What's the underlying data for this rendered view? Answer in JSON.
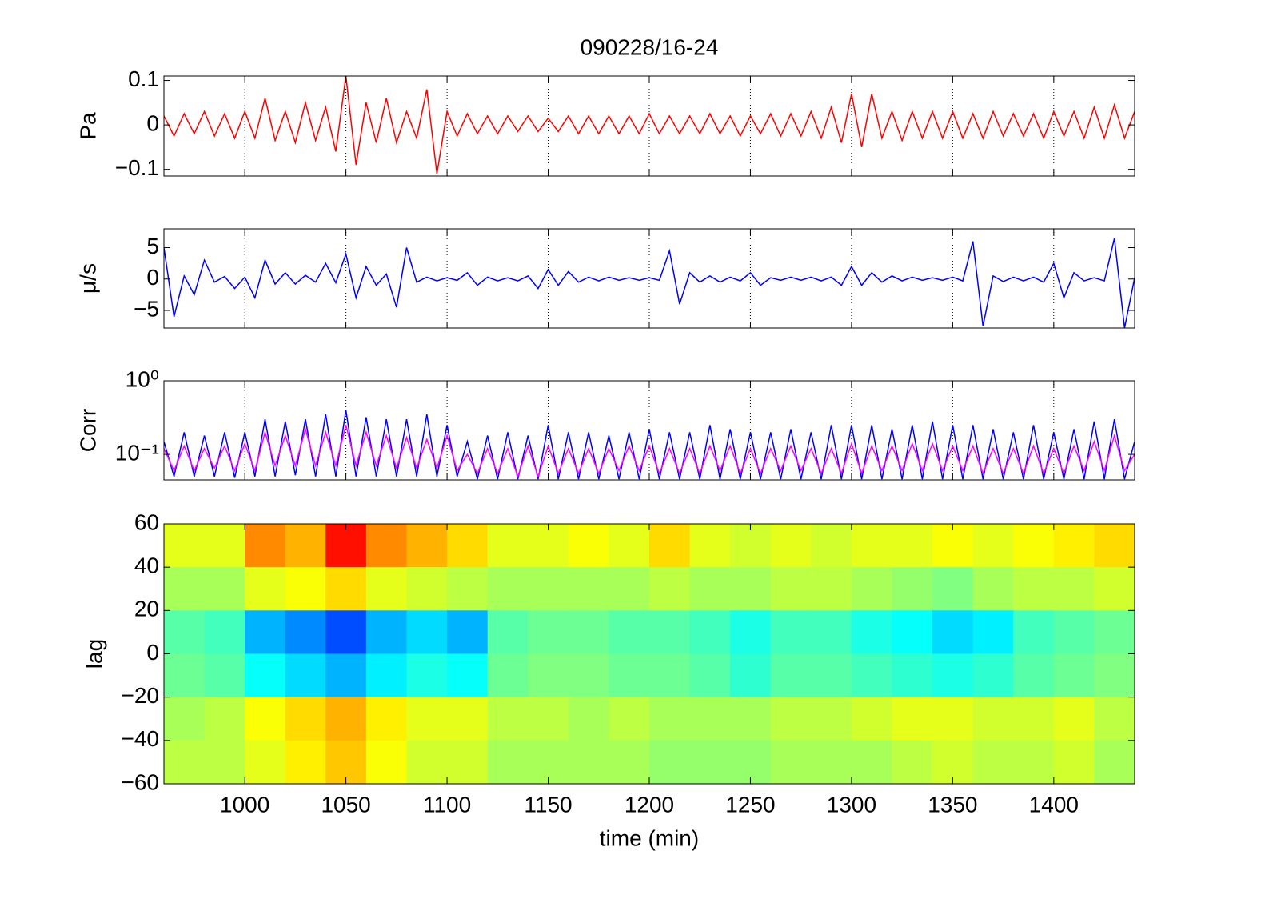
{
  "chart_data": [
    {
      "type": "line",
      "title": "090228/16-24",
      "ylabel": "Pa",
      "xlim": [
        960,
        1440
      ],
      "xticks": [
        1000,
        1050,
        1100,
        1150,
        1200,
        1250,
        1300,
        1350,
        1400
      ],
      "grid_x": true,
      "ylim": [
        -0.115,
        0.11
      ],
      "yticks": [
        0.1,
        0,
        {
          "value": -0.1,
          "label": "−0.1"
        }
      ],
      "x": [
        960,
        965,
        970,
        975,
        980,
        985,
        990,
        995,
        1000,
        1005,
        1010,
        1015,
        1020,
        1025,
        1030,
        1035,
        1040,
        1045,
        1050,
        1055,
        1060,
        1065,
        1070,
        1075,
        1080,
        1085,
        1090,
        1095,
        1100,
        1105,
        1110,
        1115,
        1120,
        1125,
        1130,
        1135,
        1140,
        1145,
        1150,
        1155,
        1160,
        1165,
        1170,
        1175,
        1180,
        1185,
        1190,
        1195,
        1200,
        1205,
        1210,
        1215,
        1220,
        1225,
        1230,
        1235,
        1240,
        1245,
        1250,
        1255,
        1260,
        1265,
        1270,
        1275,
        1280,
        1285,
        1290,
        1295,
        1300,
        1305,
        1310,
        1315,
        1320,
        1325,
        1330,
        1335,
        1340,
        1345,
        1350,
        1355,
        1360,
        1365,
        1370,
        1375,
        1380,
        1385,
        1390,
        1395,
        1400,
        1405,
        1410,
        1415,
        1420,
        1425,
        1430,
        1435,
        1440
      ],
      "series": [
        {
          "color": "#ff0000",
          "values": [
            0.02,
            -0.025,
            0.025,
            -0.02,
            0.03,
            -0.025,
            0.025,
            -0.03,
            0.03,
            -0.03,
            0.06,
            -0.035,
            0.03,
            -0.04,
            0.05,
            -0.035,
            0.04,
            -0.06,
            0.11,
            -0.09,
            0.05,
            -0.04,
            0.06,
            -0.04,
            0.03,
            -0.03,
            0.08,
            -0.11,
            0.03,
            -0.025,
            0.025,
            -0.02,
            0.02,
            -0.02,
            0.02,
            -0.015,
            0.02,
            -0.015,
            0.015,
            -0.015,
            0.02,
            -0.02,
            0.02,
            -0.02,
            0.02,
            -0.02,
            0.02,
            -0.02,
            0.025,
            -0.02,
            0.02,
            -0.02,
            0.02,
            -0.02,
            0.025,
            -0.02,
            0.02,
            -0.025,
            0.02,
            -0.02,
            0.025,
            -0.025,
            0.025,
            -0.025,
            0.03,
            -0.03,
            0.04,
            -0.04,
            0.07,
            -0.05,
            0.07,
            -0.03,
            0.03,
            -0.035,
            0.03,
            -0.03,
            0.03,
            -0.03,
            0.03,
            -0.03,
            0.025,
            -0.03,
            0.03,
            -0.025,
            0.025,
            -0.025,
            0.025,
            -0.03,
            0.03,
            -0.025,
            0.03,
            -0.03,
            0.04,
            -0.03,
            0.045,
            -0.03,
            0.03
          ]
        }
      ]
    },
    {
      "type": "line",
      "ylabel": "μ/s",
      "xlim": [
        960,
        1440
      ],
      "xticks": [
        1000,
        1050,
        1100,
        1150,
        1200,
        1250,
        1300,
        1350,
        1400
      ],
      "grid_x": true,
      "ylim": [
        -7.8,
        8
      ],
      "yticks": [
        5,
        0,
        {
          "value": -5,
          "label": "−5"
        }
      ],
      "x": [
        960,
        965,
        970,
        975,
        980,
        985,
        990,
        995,
        1000,
        1005,
        1010,
        1015,
        1020,
        1025,
        1030,
        1035,
        1040,
        1045,
        1050,
        1055,
        1060,
        1065,
        1070,
        1075,
        1080,
        1085,
        1090,
        1095,
        1100,
        1105,
        1110,
        1115,
        1120,
        1125,
        1130,
        1135,
        1140,
        1145,
        1150,
        1155,
        1160,
        1165,
        1170,
        1175,
        1180,
        1185,
        1190,
        1195,
        1200,
        1205,
        1210,
        1215,
        1220,
        1225,
        1230,
        1235,
        1240,
        1245,
        1250,
        1255,
        1260,
        1265,
        1270,
        1275,
        1280,
        1285,
        1290,
        1295,
        1300,
        1305,
        1310,
        1315,
        1320,
        1325,
        1330,
        1335,
        1340,
        1345,
        1350,
        1355,
        1360,
        1365,
        1370,
        1375,
        1380,
        1385,
        1390,
        1395,
        1400,
        1405,
        1410,
        1415,
        1420,
        1425,
        1430,
        1435,
        1440
      ],
      "series": [
        {
          "color": "#0000ff",
          "values": [
            5,
            -6,
            0.5,
            -2.5,
            3,
            -0.5,
            0.4,
            -1.5,
            0.3,
            -3,
            3,
            -0.8,
            1,
            -0.8,
            0.6,
            -0.5,
            2.5,
            -0.6,
            4,
            -3,
            2,
            -1,
            0.8,
            -4.5,
            5,
            -0.5,
            0.3,
            -0.3,
            0.2,
            -0.2,
            1,
            -1,
            0.3,
            -0.3,
            0.2,
            -0.3,
            0.5,
            -1.5,
            1.5,
            -1,
            1.2,
            -0.5,
            0.3,
            -0.3,
            0.3,
            -0.2,
            0.2,
            -0.2,
            0.2,
            -0.2,
            4.5,
            -4,
            1,
            -0.5,
            0.5,
            -0.5,
            0.3,
            -0.3,
            1,
            -1,
            0.2,
            -0.2,
            0.3,
            -0.2,
            0.3,
            -0.3,
            0.3,
            -1,
            2,
            -1,
            1,
            -0.5,
            0.5,
            -0.3,
            0.3,
            -0.2,
            0.2,
            -0.2,
            0.3,
            -0.3,
            6,
            -7.5,
            0.5,
            -0.4,
            0.3,
            -0.3,
            0.3,
            -0.5,
            2.5,
            -3,
            1,
            -0.3,
            0.2,
            -0.3,
            6.5,
            -7.8,
            0.2
          ]
        }
      ]
    },
    {
      "type": "line",
      "ylabel": "Corr",
      "log": true,
      "xlim": [
        960,
        1440
      ],
      "xticks": [
        1000,
        1050,
        1100,
        1150,
        1200,
        1250,
        1300,
        1350,
        1400
      ],
      "grid_x": true,
      "ylim": [
        0.045,
        1
      ],
      "yticks": [
        {
          "value": 1,
          "label": "10⁰"
        },
        {
          "value": 0.1,
          "label": "10⁻¹"
        }
      ],
      "x": [
        960,
        965,
        970,
        975,
        980,
        985,
        990,
        995,
        1000,
        1005,
        1010,
        1015,
        1020,
        1025,
        1030,
        1035,
        1040,
        1045,
        1050,
        1055,
        1060,
        1065,
        1070,
        1075,
        1080,
        1085,
        1090,
        1095,
        1100,
        1105,
        1110,
        1115,
        1120,
        1125,
        1130,
        1135,
        1140,
        1145,
        1150,
        1155,
        1160,
        1165,
        1170,
        1175,
        1180,
        1185,
        1190,
        1195,
        1200,
        1205,
        1210,
        1215,
        1220,
        1225,
        1230,
        1235,
        1240,
        1245,
        1250,
        1255,
        1260,
        1265,
        1270,
        1275,
        1280,
        1285,
        1290,
        1295,
        1300,
        1305,
        1310,
        1315,
        1320,
        1325,
        1330,
        1335,
        1340,
        1345,
        1350,
        1355,
        1360,
        1365,
        1370,
        1375,
        1380,
        1385,
        1390,
        1395,
        1400,
        1405,
        1410,
        1415,
        1420,
        1425,
        1430,
        1435,
        1440
      ],
      "series": [
        {
          "color": "#0000ff",
          "values": [
            0.15,
            0.05,
            0.2,
            0.05,
            0.18,
            0.05,
            0.2,
            0.048,
            0.2,
            0.05,
            0.3,
            0.05,
            0.28,
            0.052,
            0.3,
            0.05,
            0.35,
            0.05,
            0.4,
            0.05,
            0.32,
            0.05,
            0.3,
            0.05,
            0.3,
            0.05,
            0.35,
            0.05,
            0.25,
            0.05,
            0.15,
            0.046,
            0.18,
            0.046,
            0.2,
            0.046,
            0.18,
            0.046,
            0.25,
            0.046,
            0.2,
            0.046,
            0.2,
            0.046,
            0.18,
            0.046,
            0.2,
            0.046,
            0.22,
            0.046,
            0.2,
            0.046,
            0.2,
            0.046,
            0.25,
            0.046,
            0.22,
            0.046,
            0.2,
            0.046,
            0.2,
            0.046,
            0.22,
            0.046,
            0.2,
            0.046,
            0.25,
            0.046,
            0.25,
            0.046,
            0.25,
            0.046,
            0.22,
            0.046,
            0.25,
            0.046,
            0.28,
            0.046,
            0.25,
            0.046,
            0.25,
            0.046,
            0.22,
            0.046,
            0.2,
            0.046,
            0.25,
            0.046,
            0.2,
            0.046,
            0.22,
            0.046,
            0.28,
            0.046,
            0.3,
            0.046,
            0.15
          ]
        },
        {
          "color": "#ff00ff",
          "values": [
            0.12,
            0.06,
            0.13,
            0.06,
            0.12,
            0.065,
            0.13,
            0.06,
            0.14,
            0.06,
            0.2,
            0.07,
            0.18,
            0.07,
            0.22,
            0.07,
            0.2,
            0.07,
            0.25,
            0.07,
            0.2,
            0.07,
            0.18,
            0.065,
            0.17,
            0.065,
            0.16,
            0.065,
            0.18,
            0.06,
            0.1,
            0.055,
            0.12,
            0.055,
            0.12,
            0.05,
            0.13,
            0.05,
            0.13,
            0.055,
            0.12,
            0.055,
            0.12,
            0.055,
            0.12,
            0.06,
            0.13,
            0.06,
            0.13,
            0.055,
            0.12,
            0.055,
            0.12,
            0.055,
            0.13,
            0.06,
            0.13,
            0.055,
            0.12,
            0.055,
            0.12,
            0.06,
            0.13,
            0.06,
            0.12,
            0.055,
            0.12,
            0.055,
            0.14,
            0.055,
            0.13,
            0.06,
            0.13,
            0.06,
            0.14,
            0.06,
            0.14,
            0.06,
            0.13,
            0.06,
            0.13,
            0.055,
            0.12,
            0.055,
            0.12,
            0.055,
            0.13,
            0.055,
            0.12,
            0.055,
            0.13,
            0.06,
            0.15,
            0.06,
            0.18,
            0.06,
            0.1
          ]
        }
      ]
    },
    {
      "type": "heatmap",
      "ylabel": "lag",
      "xlabel": "time (min)",
      "xlim": [
        960,
        1440
      ],
      "xticks": [
        1000,
        1050,
        1100,
        1150,
        1200,
        1250,
        1300,
        1350,
        1400
      ],
      "ylim": [
        -60,
        60
      ],
      "yticks": [
        60,
        40,
        20,
        0,
        {
          "value": -20,
          "label": "−20"
        },
        {
          "value": -40,
          "label": "−40"
        },
        {
          "value": -60,
          "label": "−60"
        }
      ],
      "colormap": "jet",
      "clim": [
        -0.25,
        0.25
      ],
      "x_edges": [
        960,
        980,
        1000,
        1020,
        1040,
        1060,
        1080,
        1100,
        1120,
        1140,
        1160,
        1180,
        1200,
        1220,
        1240,
        1260,
        1280,
        1300,
        1320,
        1340,
        1360,
        1380,
        1400,
        1420,
        1440
      ],
      "y_edges": [
        60,
        40,
        20,
        0,
        -20,
        -40,
        -60
      ],
      "z": [
        [
          0.05,
          0.05,
          0.12,
          0.1,
          0.18,
          0.12,
          0.1,
          0.08,
          0.05,
          0.05,
          0.06,
          0.05,
          0.08,
          0.05,
          0.04,
          0.05,
          0.04,
          0.05,
          0.05,
          0.06,
          0.05,
          0.06,
          0.07,
          0.08
        ],
        [
          0.02,
          0.02,
          0.05,
          0.06,
          0.08,
          0.05,
          0.04,
          0.03,
          0.02,
          0.02,
          0.02,
          0.02,
          0.03,
          0.02,
          0.02,
          0.03,
          0.03,
          0.02,
          0.01,
          0,
          0.02,
          0.03,
          0.03,
          0.04
        ],
        [
          -0.02,
          -0.03,
          -0.1,
          -0.12,
          -0.15,
          -0.1,
          -0.08,
          -0.1,
          -0.02,
          -0.01,
          -0.01,
          -0.02,
          -0.02,
          -0.03,
          -0.05,
          -0.03,
          -0.03,
          -0.05,
          -0.06,
          -0.08,
          -0.07,
          -0.03,
          -0.02,
          -0.01
        ],
        [
          -0.01,
          -0.02,
          -0.06,
          -0.08,
          -0.1,
          -0.07,
          -0.05,
          -0.06,
          -0.01,
          0,
          0,
          -0.01,
          -0.01,
          -0.02,
          -0.04,
          -0.02,
          -0.02,
          -0.03,
          -0.04,
          -0.05,
          -0.04,
          -0.02,
          -0.01,
          0
        ],
        [
          0.02,
          0.03,
          0.06,
          0.08,
          0.1,
          0.07,
          0.05,
          0.05,
          0.03,
          0.03,
          0.02,
          0.03,
          0.02,
          0.02,
          0.02,
          0.03,
          0.03,
          0.04,
          0.05,
          0.05,
          0.04,
          0.04,
          0.05,
          0.03
        ],
        [
          0.03,
          0.03,
          0.05,
          0.07,
          0.09,
          0.06,
          0.04,
          0.04,
          0.02,
          0.02,
          0.02,
          0.02,
          0.01,
          0.01,
          0.01,
          0.02,
          0.02,
          0.02,
          0.03,
          0.04,
          0.03,
          0.03,
          0.04,
          0.02
        ]
      ]
    }
  ]
}
